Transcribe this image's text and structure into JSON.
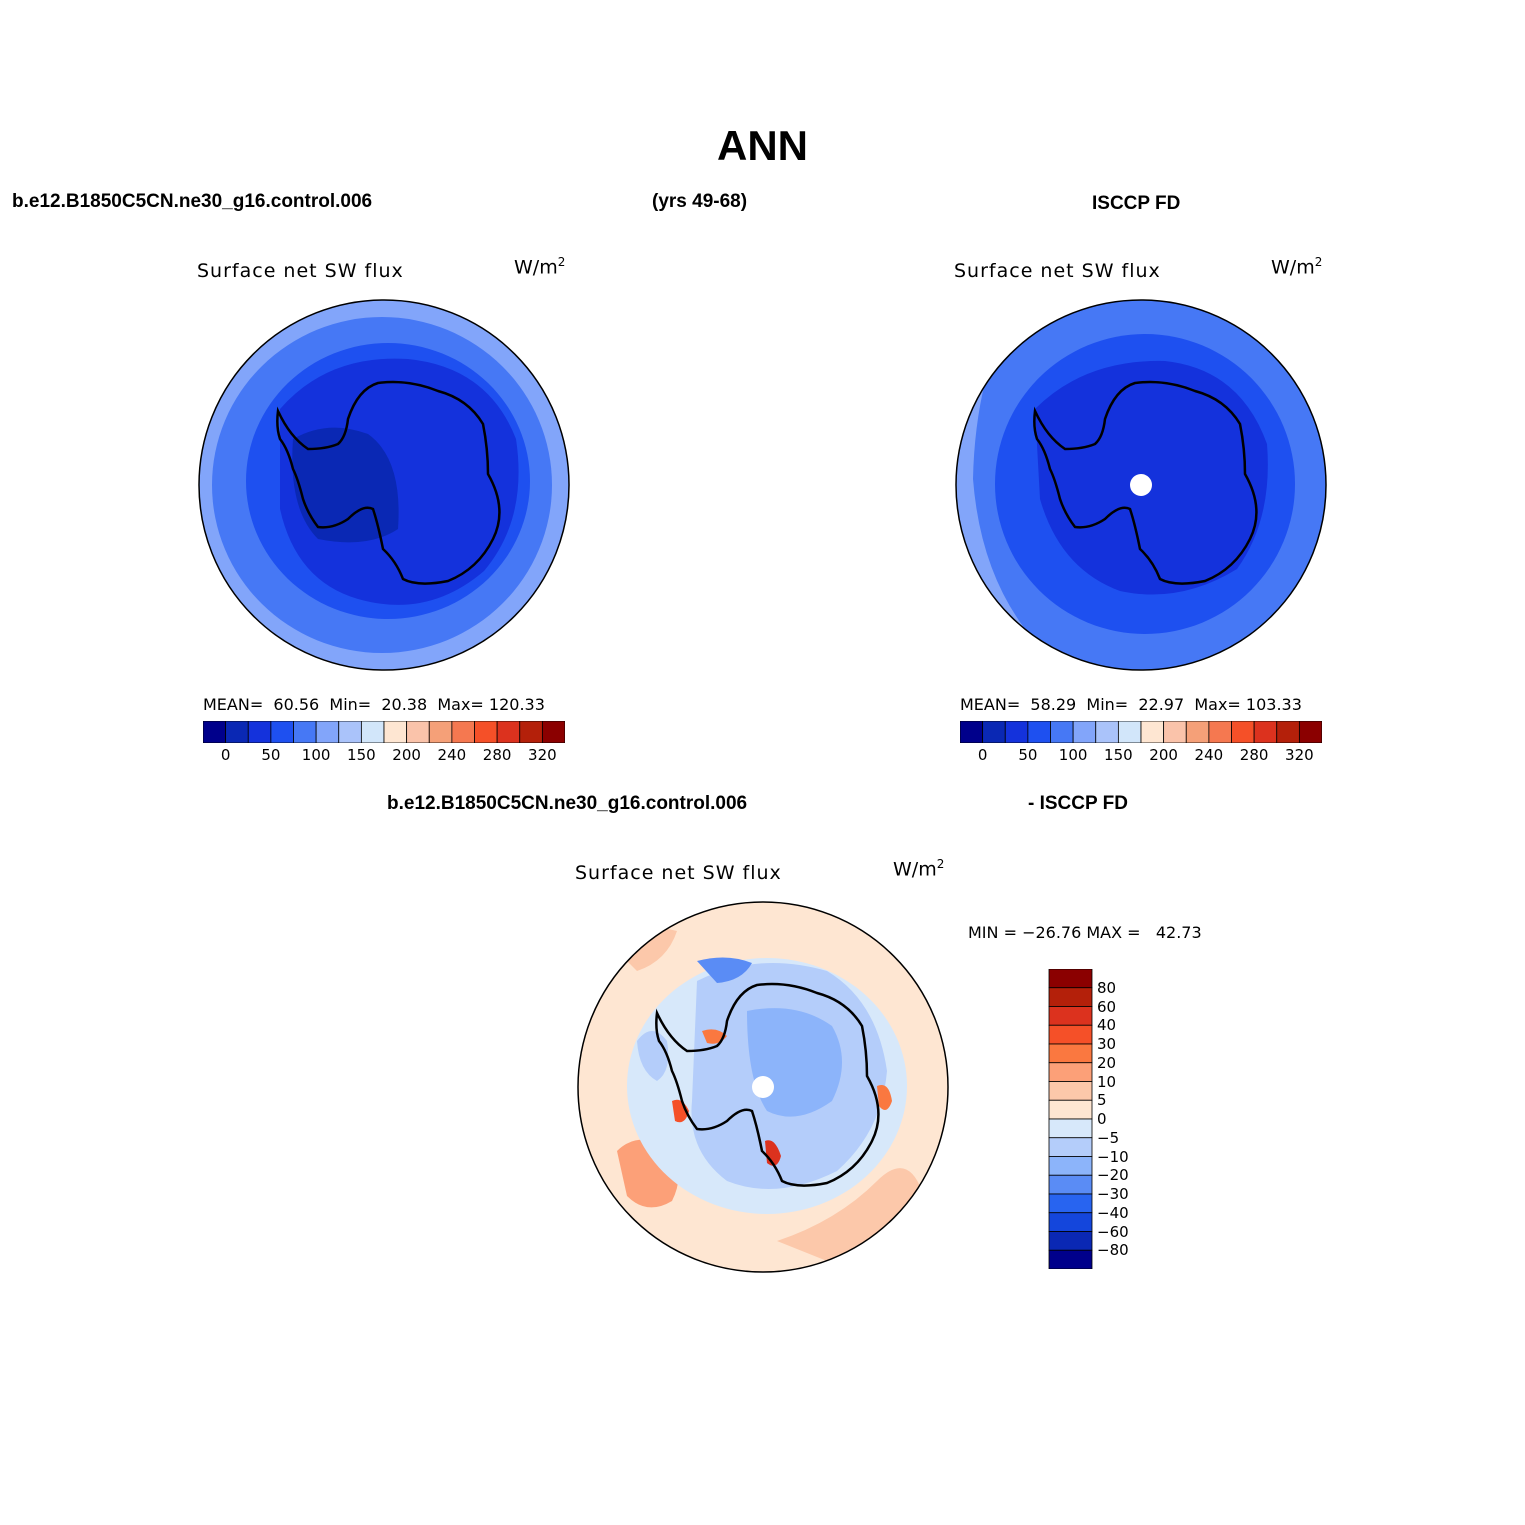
{
  "title": "ANN",
  "header": {
    "case_name": "b.e12.B1850C5CN.ne30_g16.control.006",
    "years": "(yrs 49-68)",
    "obs_name": "ISCCP FD",
    "diff_case": "b.e12.B1850C5CN.ne30_g16.control.006",
    "diff_obs": "- ISCCP FD"
  },
  "panels": [
    {
      "title": "Surface net SW flux",
      "unit_base": "W/m",
      "unit_sup": "2",
      "stats": {
        "mean_label": "MEAN=",
        "mean": "60.56",
        "min_label": "Min=",
        "min": "20.38",
        "max_label": "Max=",
        "max": "120.33"
      },
      "pole_marker": false
    },
    {
      "title": "Surface net SW flux",
      "unit_base": "W/m",
      "unit_sup": "2",
      "stats": {
        "mean_label": "MEAN=",
        "mean": "58.29",
        "min_label": "Min=",
        "min": "22.97",
        "max_label": "Max=",
        "max": "103.33"
      },
      "pole_marker": true
    },
    {
      "title": "Surface net SW flux",
      "unit_base": "W/m",
      "unit_sup": "2",
      "stats_text": "MIN = −26.76 MAX =   42.73",
      "pole_marker": true
    }
  ],
  "colorbar_abs": {
    "colors": [
      "#00008b",
      "#0a28b4",
      "#1432dc",
      "#1e50f0",
      "#4678f5",
      "#82a5fa",
      "#aac3fa",
      "#d2e6fa",
      "#fee6d2",
      "#fac3aa",
      "#f5a078",
      "#f57850",
      "#f55028",
      "#dc321e",
      "#b4200a",
      "#8b0000"
    ],
    "tick_labels": [
      "0",
      "50",
      "100",
      "150",
      "200",
      "240",
      "280",
      "320"
    ]
  },
  "colorbar_diff": {
    "colors": [
      "#8b0000",
      "#b4200a",
      "#dc321e",
      "#f55028",
      "#fa7840",
      "#fca078",
      "#fcc8aa",
      "#fee6d2",
      "#d7e8fa",
      "#b4cdfa",
      "#8cb4fa",
      "#5a8cf5",
      "#2864f0",
      "#1446dc",
      "#0a28b4",
      "#00008b"
    ],
    "tick_labels": [
      "80",
      "60",
      "40",
      "30",
      "20",
      "10",
      "5",
      "0",
      "−5",
      "−10",
      "−20",
      "−30",
      "−40",
      "−60",
      "−80"
    ]
  }
}
